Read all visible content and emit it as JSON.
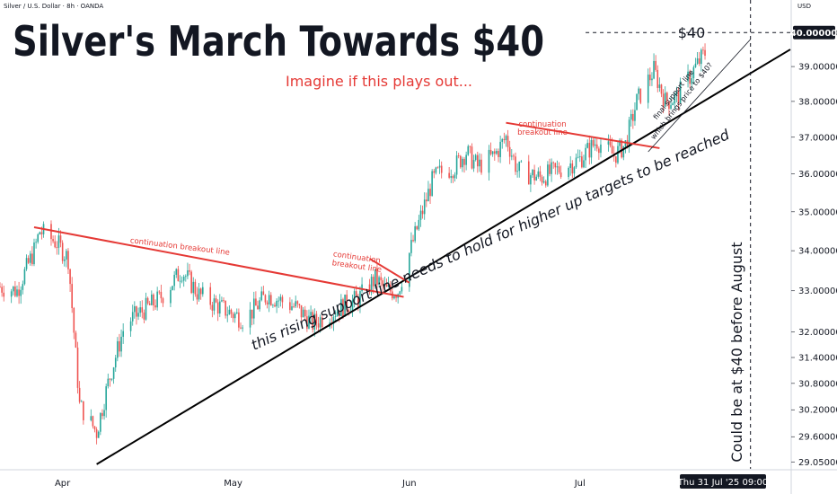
{
  "header": {
    "symbol": "Silver / U.S. Dollar · 8h · OANDA",
    "currency": "USD"
  },
  "annotations": {
    "title": "Silver's March Towards $40",
    "subtitle": "Imagine if this plays out...",
    "breakout_label_1": "continuation breakout line",
    "breakout_label_2a": "continuation",
    "breakout_label_2b": "breakout line",
    "breakout_label_3a": "continuation",
    "breakout_label_3b": "breakout line",
    "support_note": "this rising support line needs to hold for higher up targets to be reached",
    "final_line_a": "final support line",
    "final_line_b": "which brings price to $40?",
    "target_label": "$40",
    "august_note": "Could be at $40 before August"
  },
  "price_scale": {
    "current_price_tag": "40.00000",
    "date_tag": "Thu 31 Jul '25  09:00"
  },
  "colors": {
    "up": "#26a69a",
    "down": "#ef5350",
    "trendline_red": "#e53935",
    "support": "#000000",
    "tag_bg": "#131722"
  },
  "chart_data": {
    "type": "candlestick",
    "title": "Silver's March Towards $40",
    "instrument": "Silver / U.S. Dollar",
    "timeframe": "8h",
    "source": "OANDA",
    "y_scale": "log",
    "ylim": [
      28.9,
      40.6
    ],
    "y_ticks": [
      {
        "value": 40.0,
        "label": "40.00000"
      },
      {
        "value": 39.0,
        "label": "39.00000"
      },
      {
        "value": 38.0,
        "label": "38.00000"
      },
      {
        "value": 37.0,
        "label": "37.00000"
      },
      {
        "value": 36.0,
        "label": "36.00000"
      },
      {
        "value": 35.0,
        "label": "35.00000"
      },
      {
        "value": 34.0,
        "label": "34.00000"
      },
      {
        "value": 33.0,
        "label": "33.00000"
      },
      {
        "value": 32.0,
        "label": "32.00000"
      },
      {
        "value": 31.4,
        "label": "31.40000"
      },
      {
        "value": 30.8,
        "label": "30.80000"
      },
      {
        "value": 30.2,
        "label": "30.20000"
      },
      {
        "value": 29.6,
        "label": "29.60000"
      },
      {
        "value": 29.05,
        "label": "29.05000"
      }
    ],
    "x_ticks": [
      {
        "date": "2025-04-01",
        "label": "Apr"
      },
      {
        "date": "2025-05-01",
        "label": "May"
      },
      {
        "date": "2025-06-01",
        "label": "Jun"
      },
      {
        "date": "2025-07-01",
        "label": "Jul"
      }
    ],
    "xlim": [
      "2025-03-21",
      "2025-08-07"
    ],
    "path_anchors": [
      {
        "date": "2025-03-21",
        "close": 33.1
      },
      {
        "date": "2025-03-24",
        "close": 33.0
      },
      {
        "date": "2025-03-27",
        "close": 34.0
      },
      {
        "date": "2025-03-28",
        "close": 34.5
      },
      {
        "date": "2025-03-31",
        "close": 34.2
      },
      {
        "date": "2025-04-02",
        "close": 33.8
      },
      {
        "date": "2025-04-03",
        "close": 32.0
      },
      {
        "date": "2025-04-04",
        "close": 30.3
      },
      {
        "date": "2025-04-07",
        "close": 29.7
      },
      {
        "date": "2025-04-09",
        "close": 30.8
      },
      {
        "date": "2025-04-12",
        "close": 32.2
      },
      {
        "date": "2025-04-15",
        "close": 32.5
      },
      {
        "date": "2025-04-18",
        "close": 32.8
      },
      {
        "date": "2025-04-22",
        "close": 33.5
      },
      {
        "date": "2025-04-25",
        "close": 32.9
      },
      {
        "date": "2025-04-30",
        "close": 32.5
      },
      {
        "date": "2025-05-03",
        "close": 32.3
      },
      {
        "date": "2025-05-07",
        "close": 32.9
      },
      {
        "date": "2025-05-12",
        "close": 32.6
      },
      {
        "date": "2025-05-15",
        "close": 32.2
      },
      {
        "date": "2025-05-20",
        "close": 32.6
      },
      {
        "date": "2025-05-23",
        "close": 32.8
      },
      {
        "date": "2025-05-26",
        "close": 33.3
      },
      {
        "date": "2025-05-28",
        "close": 33.0
      },
      {
        "date": "2025-05-30",
        "close": 33.0
      },
      {
        "date": "2025-06-02",
        "close": 34.4
      },
      {
        "date": "2025-06-05",
        "close": 35.8
      },
      {
        "date": "2025-06-06",
        "close": 36.0
      },
      {
        "date": "2025-06-09",
        "close": 36.2
      },
      {
        "date": "2025-06-11",
        "close": 36.6
      },
      {
        "date": "2025-06-13",
        "close": 36.2
      },
      {
        "date": "2025-06-16",
        "close": 36.5
      },
      {
        "date": "2025-06-18",
        "close": 37.0
      },
      {
        "date": "2025-06-20",
        "close": 36.1
      },
      {
        "date": "2025-06-24",
        "close": 35.9
      },
      {
        "date": "2025-06-27",
        "close": 36.1
      },
      {
        "date": "2025-07-01",
        "close": 36.4
      },
      {
        "date": "2025-07-04",
        "close": 36.9
      },
      {
        "date": "2025-07-07",
        "close": 36.5
      },
      {
        "date": "2025-07-09",
        "close": 36.8
      },
      {
        "date": "2025-07-11",
        "close": 38.0
      },
      {
        "date": "2025-07-13",
        "close": 38.6
      },
      {
        "date": "2025-07-14",
        "close": 38.9
      },
      {
        "date": "2025-07-16",
        "close": 38.0
      },
      {
        "date": "2025-07-18",
        "close": 38.1
      },
      {
        "date": "2025-07-21",
        "close": 38.9
      },
      {
        "date": "2025-07-23",
        "close": 39.4
      }
    ],
    "drawings": [
      {
        "name": "rising-support-line",
        "from": {
          "date": "2025-04-07",
          "price": 29.0
        },
        "to": {
          "date": "2025-08-07",
          "price": 39.5
        }
      },
      {
        "name": "breakout-line-1",
        "from": {
          "date": "2025-03-27",
          "price": 34.6
        },
        "to": {
          "date": "2025-05-31",
          "price": 32.85
        }
      },
      {
        "name": "breakout-line-2",
        "from": {
          "date": "2025-05-25",
          "price": 33.8
        },
        "to": {
          "date": "2025-06-01",
          "price": 33.2
        }
      },
      {
        "name": "breakout-line-3",
        "from": {
          "date": "2025-06-18",
          "price": 37.4
        },
        "to": {
          "date": "2025-07-15",
          "price": 36.7
        }
      },
      {
        "name": "final-support-line",
        "from": {
          "date": "2025-07-13",
          "price": 36.6
        },
        "to": {
          "date": "2025-07-31",
          "price": 39.8
        }
      },
      {
        "name": "target-40-line",
        "from": {
          "date": "2025-07-02",
          "price": 40.0
        },
        "to": {
          "date": "2025-08-07",
          "price": 40.0
        }
      },
      {
        "name": "august-marker",
        "date": "2025-07-31"
      }
    ]
  }
}
